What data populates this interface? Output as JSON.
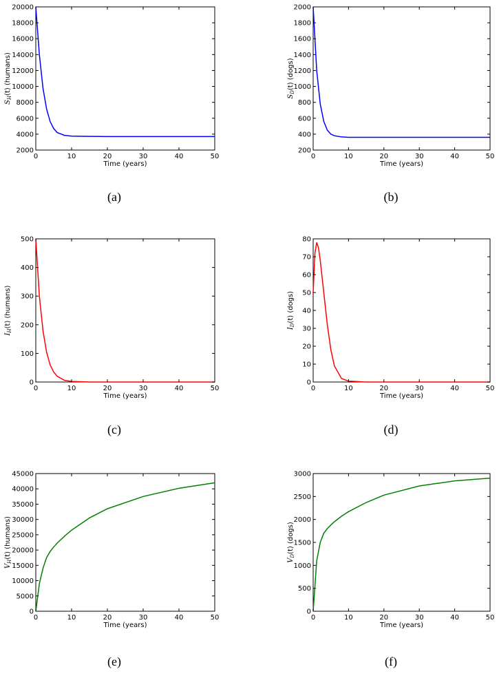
{
  "chart_data": [
    {
      "type": "line",
      "caption": "(a)",
      "xlabel": "Time (years)",
      "ylabel": {
        "symbol": "S",
        "sub": "H",
        "rest": "(t) (humans)"
      },
      "color": "#0000ff",
      "x": [
        0,
        1,
        2,
        3,
        4,
        5,
        6,
        8,
        10,
        15,
        20,
        30,
        40,
        50
      ],
      "values": [
        20000,
        14000,
        9800,
        7200,
        5600,
        4700,
        4200,
        3850,
        3750,
        3720,
        3700,
        3700,
        3700,
        3700
      ],
      "xlim": [
        0,
        50
      ],
      "xticks": [
        0,
        10,
        20,
        30,
        40,
        50
      ],
      "ylim": [
        2000,
        20000
      ],
      "yticks": [
        2000,
        4000,
        6000,
        8000,
        10000,
        12000,
        14000,
        16000,
        18000,
        20000
      ]
    },
    {
      "type": "line",
      "caption": "(b)",
      "xlabel": "Time (years)",
      "ylabel": {
        "symbol": "S",
        "sub": "D",
        "rest": "(t) (dogs)"
      },
      "color": "#0000ff",
      "x": [
        0,
        1,
        2,
        3,
        4,
        5,
        6,
        8,
        10,
        15,
        20,
        30,
        40,
        50
      ],
      "values": [
        2000,
        1200,
        780,
        560,
        450,
        400,
        380,
        365,
        360,
        360,
        360,
        360,
        360,
        360
      ],
      "xlim": [
        0,
        50
      ],
      "xticks": [
        0,
        10,
        20,
        30,
        40,
        50
      ],
      "ylim": [
        200,
        2000
      ],
      "yticks": [
        200,
        400,
        600,
        800,
        1000,
        1200,
        1400,
        1600,
        1800,
        2000
      ]
    },
    {
      "type": "line",
      "caption": "(c)",
      "xlabel": "Time (years)",
      "ylabel": {
        "symbol": "I",
        "sub": "H",
        "rest": "(t) (humans)"
      },
      "color": "#ff0000",
      "x": [
        0,
        1,
        2,
        3,
        4,
        5,
        6,
        8,
        10,
        15,
        20,
        30,
        40,
        50
      ],
      "values": [
        500,
        300,
        180,
        105,
        60,
        35,
        20,
        6,
        2,
        0,
        0,
        0,
        0,
        0
      ],
      "xlim": [
        0,
        50
      ],
      "xticks": [
        0,
        10,
        20,
        30,
        40,
        50
      ],
      "ylim": [
        0,
        500
      ],
      "yticks": [
        0,
        100,
        200,
        300,
        400,
        500
      ]
    },
    {
      "type": "line",
      "caption": "(d)",
      "xlabel": "Time (years)",
      "ylabel": {
        "symbol": "I",
        "sub": "D",
        "rest": "(t) (dogs)"
      },
      "color": "#ff0000",
      "x": [
        0,
        0.5,
        1,
        1.5,
        2,
        3,
        4,
        5,
        6,
        8,
        10,
        15,
        20,
        30,
        40,
        50
      ],
      "values": [
        50,
        72,
        78,
        75,
        68,
        50,
        32,
        18,
        9,
        2,
        0.5,
        0,
        0,
        0,
        0,
        0
      ],
      "xlim": [
        0,
        50
      ],
      "xticks": [
        0,
        10,
        20,
        30,
        40,
        50
      ],
      "ylim": [
        0,
        80
      ],
      "yticks": [
        0,
        10,
        20,
        30,
        40,
        50,
        60,
        70,
        80
      ]
    },
    {
      "type": "line",
      "caption": "(e)",
      "xlabel": "Time (years)",
      "ylabel": {
        "symbol": "V",
        "sub": "H",
        "rest": "(t) (humans)"
      },
      "color": "#008000",
      "x": [
        0,
        1,
        2,
        3,
        4,
        5,
        6,
        8,
        10,
        15,
        20,
        30,
        40,
        50
      ],
      "values": [
        0,
        9000,
        14000,
        17500,
        19500,
        21000,
        22300,
        24500,
        26500,
        30500,
        33500,
        37500,
        40200,
        42000
      ],
      "xlim": [
        0,
        50
      ],
      "xticks": [
        0,
        10,
        20,
        30,
        40,
        50
      ],
      "ylim": [
        0,
        45000
      ],
      "yticks": [
        0,
        5000,
        10000,
        15000,
        20000,
        25000,
        30000,
        35000,
        40000,
        45000
      ]
    },
    {
      "type": "line",
      "caption": "(f)",
      "xlabel": "Time (years)",
      "ylabel": {
        "symbol": "V",
        "sub": "D",
        "rest": "(t) (dogs)"
      },
      "color": "#008000",
      "x": [
        0,
        1,
        2,
        3,
        4,
        5,
        6,
        8,
        10,
        15,
        20,
        30,
        40,
        50
      ],
      "values": [
        0,
        1100,
        1500,
        1700,
        1800,
        1880,
        1950,
        2070,
        2170,
        2370,
        2530,
        2730,
        2840,
        2900
      ],
      "xlim": [
        0,
        50
      ],
      "xticks": [
        0,
        10,
        20,
        30,
        40,
        50
      ],
      "ylim": [
        0,
        3000
      ],
      "yticks": [
        0,
        500,
        1000,
        1500,
        2000,
        2500,
        3000
      ]
    }
  ]
}
